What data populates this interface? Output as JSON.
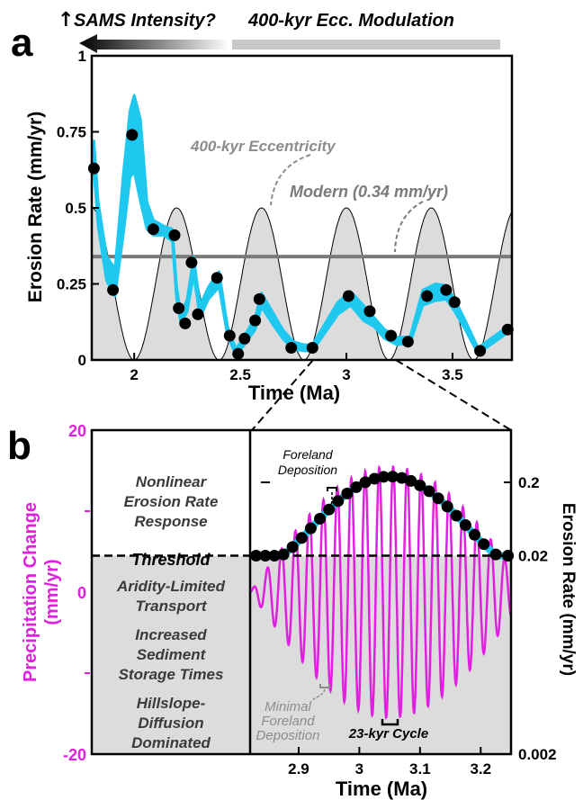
{
  "panel_a": {
    "label": "a",
    "arrow_text_left": "SAMS Intensity?",
    "arrow_text_right": "400-kyr Ecc. Modulation",
    "xlabel": "Time (Ma)",
    "ylabel": "Erosion Rate (mm/yr)",
    "annotation_ecc": "400-kyr Eccentricity",
    "annotation_modern": "Modern (0.34 mm/yr)"
  },
  "panel_b": {
    "label": "b",
    "xlabel": "Time (Ma)",
    "ylabel_left_line1": "Precipitation Change",
    "ylabel_left_line2": "(mm/yr)",
    "ylabel_right": "Erosion Rate (mm/yr)",
    "threshold": "Threshold",
    "upper_text": [
      "Nonlinear",
      "Erosion Rate",
      "Response"
    ],
    "lower_text": [
      "Aridity-Limited",
      "Transport",
      "Increased",
      "Sediment",
      "Storage Times",
      "Hillslope-",
      "Diffusion",
      "Dominated"
    ],
    "foreland": [
      "Foreland",
      "Deposition"
    ],
    "minimal_foreland": [
      "Minimal",
      "Foreland",
      "Deposition"
    ],
    "cycle": "23-kyr Cycle"
  },
  "colors": {
    "cyan": "#1EC8EE",
    "magenta": "#E020E0",
    "gray_fill": "#DCDCDC",
    "modern_line": "#7A7A7A",
    "gray_text": "#8C8C8C"
  },
  "chart_data": [
    {
      "type": "line",
      "panel": "a",
      "xlabel": "Time (Ma)",
      "ylabel": "Erosion Rate (mm/yr)",
      "xlim": [
        1.8,
        3.78
      ],
      "ylim": [
        0,
        1
      ],
      "x_ticks": [
        "2",
        "2.5",
        "3",
        "3.5"
      ],
      "x_tick_values": [
        2,
        2.5,
        3,
        3.5
      ],
      "y_ticks": [
        "0",
        "0.25",
        "0.5",
        "0.75",
        "1"
      ],
      "y_tick_values": [
        0,
        0.25,
        0.5,
        0.75,
        1
      ],
      "modern_value": 0.34,
      "eccentricity": {
        "period_myr": 0.4,
        "peaks_ma": [
          2.2,
          2.6,
          3.0,
          3.4
        ],
        "min": 0,
        "max": 0.5
      },
      "points": [
        [
          1.81,
          0.63
        ],
        [
          1.9,
          0.23
        ],
        [
          1.99,
          0.74
        ],
        [
          2.09,
          0.43
        ],
        [
          2.19,
          0.41
        ],
        [
          2.21,
          0.17
        ],
        [
          2.24,
          0.12
        ],
        [
          2.27,
          0.32
        ],
        [
          2.3,
          0.15
        ],
        [
          2.39,
          0.27
        ],
        [
          2.45,
          0.08
        ],
        [
          2.49,
          0.02
        ],
        [
          2.52,
          0.07
        ],
        [
          2.57,
          0.13
        ],
        [
          2.59,
          0.2
        ],
        [
          2.74,
          0.04
        ],
        [
          2.84,
          0.04
        ],
        [
          3.01,
          0.21
        ],
        [
          3.11,
          0.16
        ],
        [
          3.21,
          0.08
        ],
        [
          3.29,
          0.06
        ],
        [
          3.38,
          0.21
        ],
        [
          3.47,
          0.23
        ],
        [
          3.51,
          0.19
        ],
        [
          3.63,
          0.03
        ],
        [
          3.76,
          0.1
        ]
      ],
      "band": {
        "x": [
          1.81,
          1.83,
          1.87,
          1.91,
          1.95,
          1.98,
          2.0,
          2.03,
          2.06,
          2.09,
          2.14,
          2.18,
          2.2,
          2.22,
          2.25,
          2.28,
          2.31,
          2.35,
          2.4,
          2.44,
          2.48,
          2.52,
          2.57,
          2.6,
          2.65,
          2.7,
          2.75,
          2.8,
          2.84,
          2.9,
          2.96,
          3.02,
          3.08,
          3.13,
          3.18,
          3.24,
          3.3,
          3.36,
          3.42,
          3.47,
          3.51,
          3.56,
          3.62,
          3.7,
          3.76
        ],
        "lower": [
          0.62,
          0.44,
          0.26,
          0.21,
          0.42,
          0.6,
          0.62,
          0.52,
          0.43,
          0.41,
          0.41,
          0.39,
          0.2,
          0.12,
          0.16,
          0.28,
          0.14,
          0.2,
          0.24,
          0.08,
          0.015,
          0.05,
          0.1,
          0.175,
          0.12,
          0.07,
          0.035,
          0.03,
          0.03,
          0.09,
          0.15,
          0.18,
          0.13,
          0.11,
          0.07,
          0.05,
          0.055,
          0.18,
          0.195,
          0.2,
          0.16,
          0.1,
          0.02,
          0.06,
          0.09
        ],
        "upper": [
          0.72,
          0.52,
          0.34,
          0.3,
          0.62,
          0.82,
          0.87,
          0.79,
          0.52,
          0.46,
          0.44,
          0.43,
          0.24,
          0.15,
          0.2,
          0.34,
          0.18,
          0.24,
          0.29,
          0.11,
          0.035,
          0.08,
          0.14,
          0.22,
          0.16,
          0.1,
          0.06,
          0.05,
          0.05,
          0.12,
          0.19,
          0.225,
          0.18,
          0.14,
          0.1,
          0.075,
          0.075,
          0.23,
          0.25,
          0.245,
          0.2,
          0.13,
          0.04,
          0.08,
          0.11
        ]
      }
    },
    {
      "type": "line",
      "panel": "b",
      "xlabel": "Time (Ma)",
      "ylabel_left": "Precipitation Change (mm/yr)",
      "ylabel_right": "Erosion Rate (mm/yr)",
      "xlim": [
        2.82,
        3.25
      ],
      "x_ticks": [
        "2.9",
        "3",
        "3.1",
        "3.2"
      ],
      "x_tick_values": [
        2.9,
        3.0,
        3.1,
        3.2
      ],
      "y_left_lim": [
        -20,
        20
      ],
      "y_left_ticks": [
        "-20",
        "0",
        "20"
      ],
      "y_left_tick_values": [
        -20,
        0,
        20
      ],
      "y_right_ticks": [
        "0.002",
        "0.02",
        "0.2"
      ],
      "y_right_tick_values": [
        0.002,
        0.02,
        0.2
      ],
      "threshold_precip": 4.5,
      "precipitation": {
        "period_kyr": 23,
        "peak_ma": 3.05,
        "amplitude_max": 15.5
      },
      "erosion_points_x": [
        2.83,
        2.845,
        2.86,
        2.875,
        2.89,
        2.905,
        2.92,
        2.935,
        2.95,
        2.965,
        2.98,
        2.995,
        3.01,
        3.025,
        3.04,
        3.055,
        3.07,
        3.085,
        3.1,
        3.115,
        3.13,
        3.145,
        3.16,
        3.175,
        3.19,
        3.205,
        3.225,
        3.245
      ]
    }
  ]
}
